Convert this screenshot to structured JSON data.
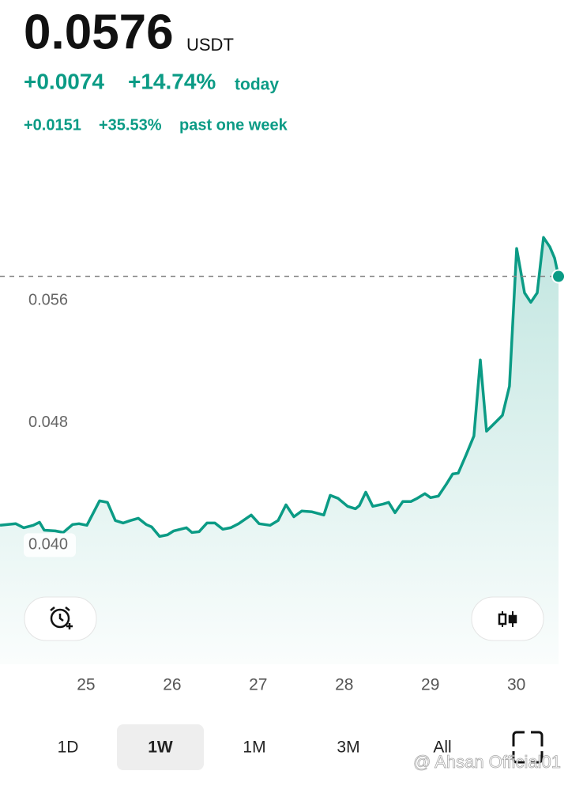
{
  "header": {
    "price": "0.0576",
    "unit": "USDT",
    "change_today": "+0.0074",
    "pct_today": "+14.74%",
    "today_label": "today",
    "change_week": "+0.0151",
    "pct_week": "+35.53%",
    "week_label": "past one week"
  },
  "chart_data": {
    "type": "line",
    "x": [
      24.0,
      24.184,
      24.275,
      24.386,
      24.459,
      24.514,
      24.643,
      24.734,
      24.844,
      24.918,
      25.01,
      25.157,
      25.248,
      25.34,
      25.432,
      25.515,
      25.606,
      25.698,
      25.762,
      25.854,
      25.946,
      26.019,
      26.166,
      26.231,
      26.313,
      26.405,
      26.497,
      26.589,
      26.68,
      26.772,
      26.919,
      27.011,
      27.139,
      27.231,
      27.323,
      27.415,
      27.506,
      27.626,
      27.763,
      27.837,
      27.929,
      28.039,
      28.131,
      28.176,
      28.25,
      28.332,
      28.452,
      28.516,
      28.59,
      28.681,
      28.773,
      28.847,
      28.938,
      29.003,
      29.094,
      29.186,
      29.26,
      29.324,
      29.416,
      29.507,
      29.581,
      29.654,
      29.764,
      29.838,
      29.92,
      30.003,
      30.095,
      30.168,
      30.242,
      30.315,
      30.389,
      30.444,
      30.49
    ],
    "series": [
      {
        "color": "#0b9b85",
        "values": [
          0.0413,
          0.0414,
          0.04114,
          0.0413,
          0.0415,
          0.04098,
          0.04093,
          0.04083,
          0.04135,
          0.0414,
          0.0413,
          0.0429,
          0.0428,
          0.04161,
          0.04145,
          0.04161,
          0.04176,
          0.04135,
          0.04119,
          0.04057,
          0.04067,
          0.04093,
          0.04114,
          0.04083,
          0.04088,
          0.04145,
          0.04145,
          0.04104,
          0.04114,
          0.0414,
          0.04197,
          0.0414,
          0.0413,
          0.04161,
          0.04264,
          0.04186,
          0.04223,
          0.04218,
          0.04197,
          0.04326,
          0.04306,
          0.04254,
          0.04238,
          0.04259,
          0.04347,
          0.04254,
          0.04269,
          0.0428,
          0.04212,
          0.04285,
          0.04285,
          0.04306,
          0.04337,
          0.04311,
          0.04321,
          0.04399,
          0.04466,
          0.04471,
          0.04591,
          0.04715,
          0.05212,
          0.04746,
          0.04808,
          0.0485,
          0.05041,
          0.05943,
          0.05652,
          0.0559,
          0.05652,
          0.06015,
          0.05953,
          0.0588,
          0.0576
        ]
      }
    ],
    "xlim": [
      24,
      30.6
    ],
    "xticks": [
      25,
      26,
      27,
      28,
      29,
      30
    ],
    "ylim": [
      0.0322,
      0.0612
    ],
    "yticks": [
      {
        "value": 0.04,
        "label": "0.040"
      },
      {
        "value": 0.048,
        "label": "0.048"
      },
      {
        "value": 0.056,
        "label": "0.056"
      }
    ]
  },
  "controls": {
    "tabs": [
      "1D",
      "1W",
      "1M",
      "3M",
      "All"
    ],
    "selected_tab": "1W"
  },
  "watermark": "@ Ahsan Official01"
}
